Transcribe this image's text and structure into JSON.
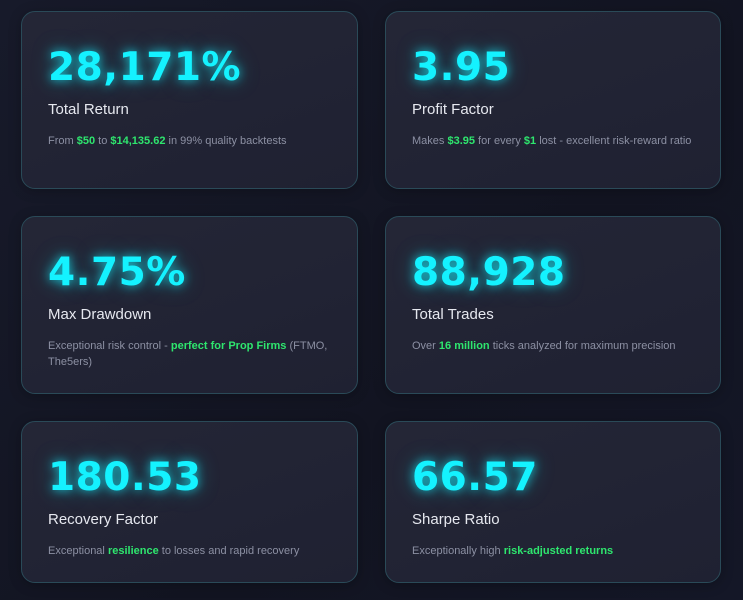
{
  "cards": [
    {
      "value": "28,171%",
      "label": "Total Return",
      "desc": {
        "t1": "From ",
        "h1": "$50",
        "t2": " to ",
        "h2": "$14,135.62",
        "t3": " in 99% quality backtests"
      }
    },
    {
      "value": "3.95",
      "label": "Profit Factor",
      "desc": {
        "t1": "Makes ",
        "h1": "$3.95",
        "t2": " for every ",
        "h2": "$1",
        "t3": " lost - excellent risk-reward ratio"
      }
    },
    {
      "value": "4.75%",
      "label": "Max Drawdown",
      "desc": {
        "t1": "Exceptional risk control - ",
        "h1": "perfect for Prop Firms",
        "t2": " (FTMO, The5ers)"
      }
    },
    {
      "value": "88,928",
      "label": "Total Trades",
      "desc": {
        "t1": "Over ",
        "h1": "16 million",
        "t2": " ticks analyzed for maximum precision"
      }
    },
    {
      "value": "180.53",
      "label": "Recovery Factor",
      "desc": {
        "t1": "Exceptional ",
        "h1": "resilience",
        "t2": " to losses and rapid recovery"
      }
    },
    {
      "value": "66.57",
      "label": "Sharpe Ratio",
      "desc": {
        "t1": "Exceptionally high ",
        "h1": "risk-adjusted returns"
      }
    }
  ],
  "colors": {
    "accent_cyan": "#14f2ff",
    "highlight_green": "#2ee66e",
    "background": "#161929",
    "card_border": "#2a4a58"
  }
}
